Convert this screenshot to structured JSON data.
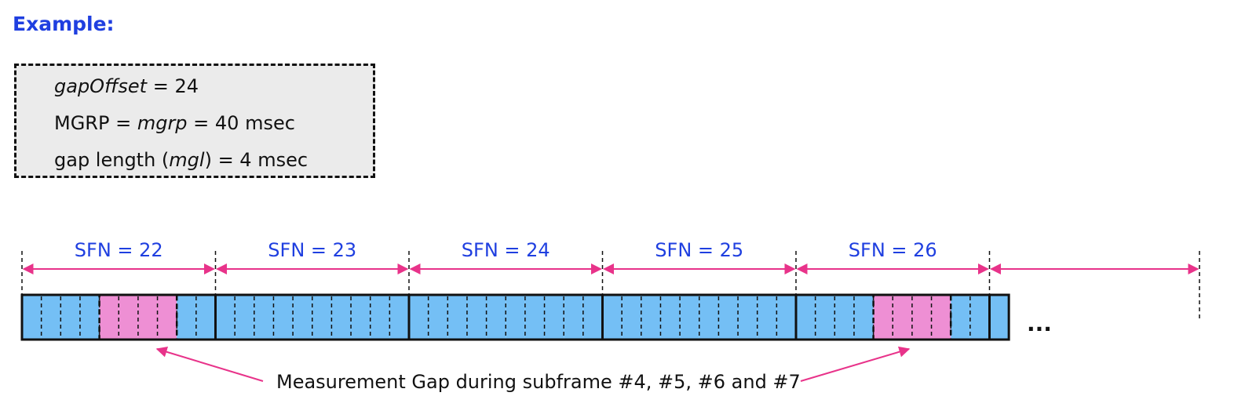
{
  "heading": "Example:",
  "params": {
    "line1_italic": "gapOffset",
    "line1_rest": " = 24",
    "line2_a": "MGRP = ",
    "line2_italic": "mgrp",
    "line2_rest": " = 40 msec",
    "line3_a": "gap length (",
    "line3_italic": "mgl",
    "line3_rest": ") = 4 msec"
  },
  "frames": [
    {
      "label": "SFN = 22",
      "gap_subframes": [
        4,
        5,
        6,
        7
      ]
    },
    {
      "label": "SFN = 23",
      "gap_subframes": []
    },
    {
      "label": "SFN = 24",
      "gap_subframes": []
    },
    {
      "label": "SFN = 25",
      "gap_subframes": []
    },
    {
      "label": "SFN = 26",
      "gap_subframes": [
        4,
        5,
        6,
        7
      ]
    }
  ],
  "ellipsis": "...",
  "caption": "Measurement Gap during subframe #4, #5, #6 and #7",
  "colors": {
    "subframe": "#74bff5",
    "gap": "#ee8fd4",
    "arrow": "#e8338a",
    "label": "#1f3fe0"
  }
}
